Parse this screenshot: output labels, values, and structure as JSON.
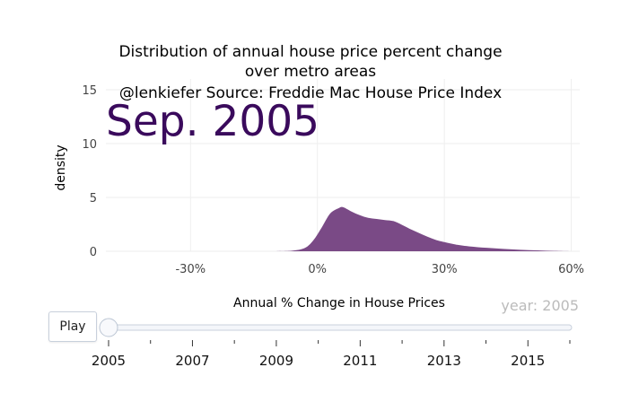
{
  "chart_data": {
    "type": "area",
    "title_lines": [
      "Distribution of annual house price percent change",
      "over metro areas",
      "@lenkiefer Source: Freddie Mac House Price Index"
    ],
    "frame_label": "Sep. 2005",
    "xlabel": "Annual % Change in House Prices",
    "ylabel": "density",
    "xlim": [
      -50,
      62
    ],
    "ylim": [
      0,
      16
    ],
    "x_ticks": [
      -30,
      0,
      30,
      60
    ],
    "x_tick_labels": [
      "-30%",
      "0%",
      "30%",
      "60%"
    ],
    "y_ticks": [
      0,
      5,
      10,
      15
    ],
    "y_tick_labels": [
      "0",
      "5",
      "10",
      "15"
    ],
    "grid": true,
    "fill_color": "#7a4a86",
    "series": [
      {
        "name": "density",
        "x": [
          -10,
          -6,
          -3,
          -1,
          1,
          3,
          5,
          6,
          8,
          10,
          12,
          14,
          16,
          18,
          20,
          22,
          24,
          26,
          28,
          30,
          33,
          36,
          40,
          44,
          48,
          52,
          56,
          60
        ],
        "y": [
          0,
          0.05,
          0.3,
          1.0,
          2.2,
          3.5,
          4.0,
          4.1,
          3.7,
          3.35,
          3.1,
          3.0,
          2.9,
          2.8,
          2.45,
          2.05,
          1.7,
          1.35,
          1.05,
          0.85,
          0.6,
          0.45,
          0.32,
          0.22,
          0.14,
          0.08,
          0.03,
          0
        ]
      }
    ]
  },
  "slider": {
    "current_value": "year: 2005",
    "play_label": "Play",
    "range": [
      2005,
      2016
    ],
    "selected": 2005,
    "tick_labels": [
      "2005",
      "2007",
      "2009",
      "2011",
      "2013",
      "2015"
    ],
    "tick_values": [
      2005,
      2007,
      2009,
      2011,
      2013,
      2015
    ]
  }
}
